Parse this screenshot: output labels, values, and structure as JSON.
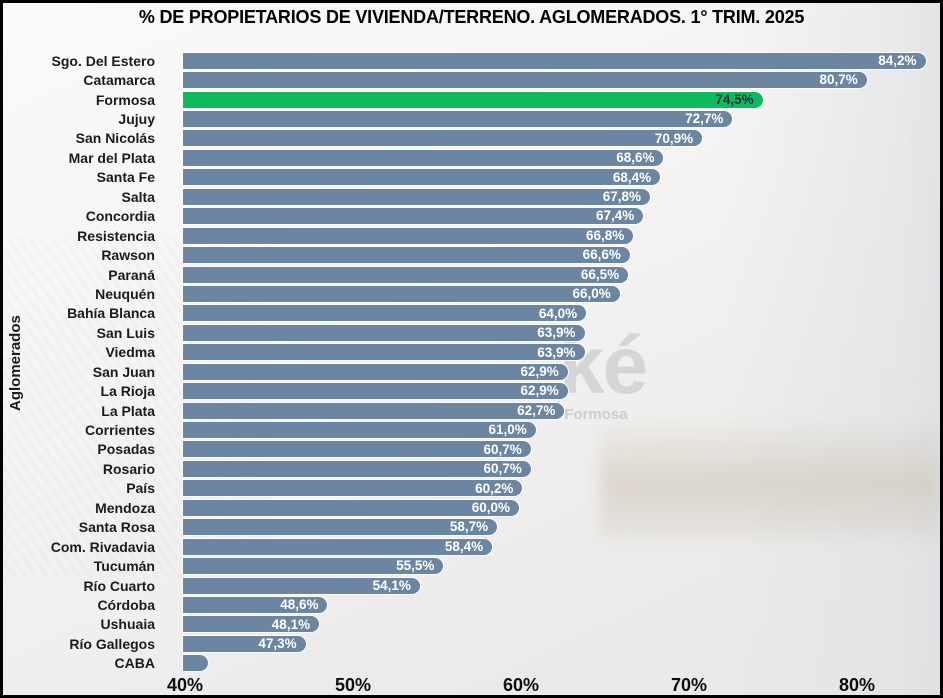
{
  "chart_data": {
    "type": "bar",
    "orientation": "horizontal",
    "title": "% DE PROPIETARIOS DE VIVIENDA/TERRENO. AGLOMERADOS. 1° TRIM. 2025",
    "xlabel": "",
    "ylabel": "Aglomerados",
    "xlim": [
      40,
      85
    ],
    "x_ticks": [
      "40%",
      "50%",
      "60%",
      "70%",
      "80%"
    ],
    "x_tick_values": [
      40,
      50,
      60,
      70,
      80
    ],
    "grid": false,
    "legend": false,
    "categories": [
      "Sgo. Del Estero",
      "Catamarca",
      "Formosa",
      "Jujuy",
      "San Nicolás",
      "Mar del Plata",
      "Santa Fe",
      "Salta",
      "Concordia",
      "Resistencia",
      "Rawson",
      "Paraná",
      "Neuquén",
      "Bahía Blanca",
      "San Luis",
      "Viedma",
      "San Juan",
      "La Rioja",
      "La Plata",
      "Corrientes",
      "Posadas",
      "Rosario",
      "País",
      "Mendoza",
      "Santa Rosa",
      "Com. Rivadavia",
      "Tucumán",
      "Río Cuarto",
      "Córdoba",
      "Ushuaia",
      "Río Gallegos",
      "CABA"
    ],
    "values": [
      84.2,
      80.7,
      74.5,
      72.7,
      70.9,
      68.6,
      68.4,
      67.8,
      67.4,
      66.8,
      66.6,
      66.5,
      66.0,
      64.0,
      63.9,
      63.9,
      62.9,
      62.9,
      62.7,
      61.0,
      60.7,
      60.7,
      60.2,
      60.0,
      58.7,
      58.4,
      55.5,
      54.1,
      48.6,
      48.1,
      47.3,
      41.5
    ],
    "value_labels": [
      "84,2%",
      "80,7%",
      "74,5%",
      "72,7%",
      "70,9%",
      "68,6%",
      "68,4%",
      "67,8%",
      "67,4%",
      "66,8%",
      "66,6%",
      "66,5%",
      "66,0%",
      "64,0%",
      "63,9%",
      "63,9%",
      "62,9%",
      "62,9%",
      "62,7%",
      "61,0%",
      "60,7%",
      "60,7%",
      "60,2%",
      "60,0%",
      "58,7%",
      "58,4%",
      "55,5%",
      "54,1%",
      "48,6%",
      "48,1%",
      "47,3%",
      ""
    ],
    "highlight_category": "Formosa",
    "colors": {
      "bar": "#6c85a0",
      "highlight": "#0dbb5d",
      "value_label": "#ffffff",
      "highlight_value_label": "#112b3c",
      "title": "#000000",
      "axis_label": "#0d0d0d"
    }
  },
  "watermark": {
    "logo_fragment": "ké",
    "text_fragment": "cas Formosa"
  }
}
